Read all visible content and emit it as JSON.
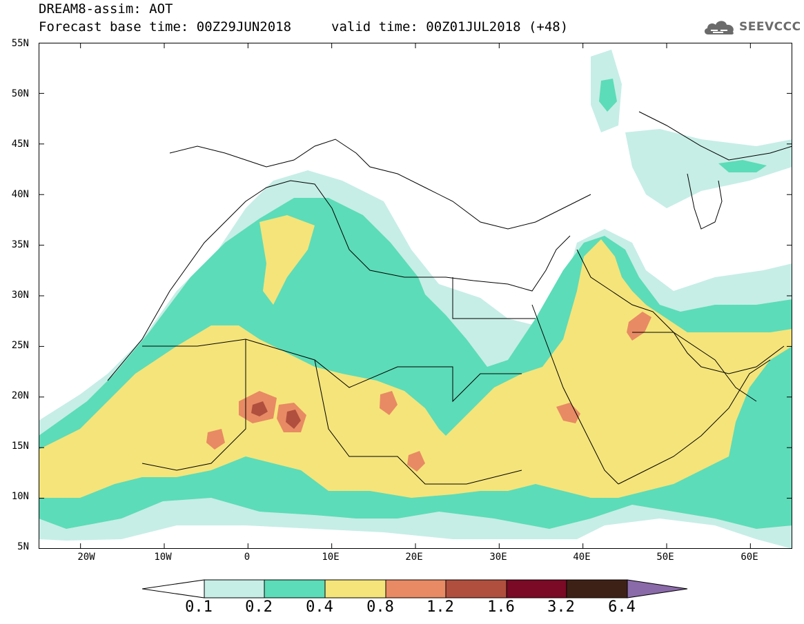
{
  "header": {
    "title": "DREAM8-assim: AOT",
    "base_time": "Forecast base time: 00Z29JUN2018",
    "valid_time": "valid time: 00Z01JUL2018 (+48)"
  },
  "brand": {
    "name": "SEEVCCC",
    "icon": "cloud-logo-icon"
  },
  "map": {
    "lat_labels": [
      "55N",
      "50N",
      "45N",
      "40N",
      "35N",
      "30N",
      "25N",
      "20N",
      "15N",
      "10N",
      "5N"
    ],
    "lon_labels": [
      "20W",
      "10W",
      "0",
      "10E",
      "20E",
      "30E",
      "40E",
      "50E",
      "60E"
    ],
    "extent": {
      "lon_min": -25,
      "lon_max": 65,
      "lat_min": 5,
      "lat_max": 55
    },
    "background": "#ffffff"
  },
  "colorbar": {
    "labels": [
      "0.1",
      "0.2",
      "0.4",
      "0.8",
      "1.2",
      "1.6",
      "3.2",
      "6.4"
    ],
    "colors": [
      "#ffffff",
      "#c6eee6",
      "#5cdcb8",
      "#f5e47a",
      "#e88a64",
      "#b04f3e",
      "#7a0a26",
      "#3e2116",
      "#8a6aa8"
    ]
  }
}
